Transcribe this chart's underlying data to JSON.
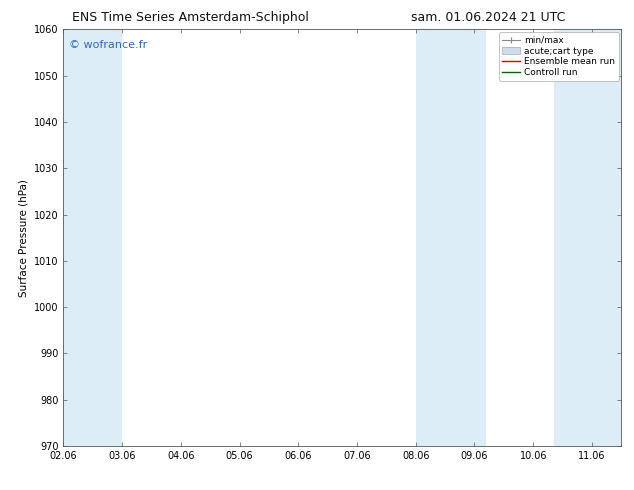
{
  "title_left": "ENS Time Series Amsterdam-Schiphol",
  "title_right": "sam. 01.06.2024 21 UTC",
  "ylabel": "Surface Pressure (hPa)",
  "ylim": [
    970,
    1060
  ],
  "yticks": [
    970,
    980,
    990,
    1000,
    1010,
    1020,
    1030,
    1040,
    1050,
    1060
  ],
  "xlim": [
    0.0,
    9.5
  ],
  "xtick_positions": [
    0,
    1,
    2,
    3,
    4,
    5,
    6,
    7,
    8,
    9
  ],
  "xtick_labels": [
    "02.06",
    "03.06",
    "04.06",
    "05.06",
    "06.06",
    "07.06",
    "08.06",
    "09.06",
    "10.06",
    "11.06"
  ],
  "shaded_bands": [
    {
      "x_start": 0.0,
      "x_end": 1.0,
      "color": "#ddedf8"
    },
    {
      "x_start": 6.0,
      "x_end": 7.2,
      "color": "#ddedf8"
    },
    {
      "x_start": 8.35,
      "x_end": 9.5,
      "color": "#ddedf8"
    }
  ],
  "watermark": "© wofrance.fr",
  "watermark_color": "#3366bb",
  "background_color": "#ffffff",
  "plot_bg_color": "#ffffff",
  "spine_color": "#555555",
  "tick_color": "#555555",
  "legend_labels": [
    "min/max",
    "acute;cart type",
    "Ensemble mean run",
    "Controll run"
  ],
  "legend_colors_line": [
    "#888888",
    "#ccddee",
    "#dd0000",
    "#006600"
  ],
  "title_fontsize": 9,
  "label_fontsize": 7.5,
  "tick_fontsize": 7,
  "watermark_fontsize": 8,
  "legend_fontsize": 6.5
}
